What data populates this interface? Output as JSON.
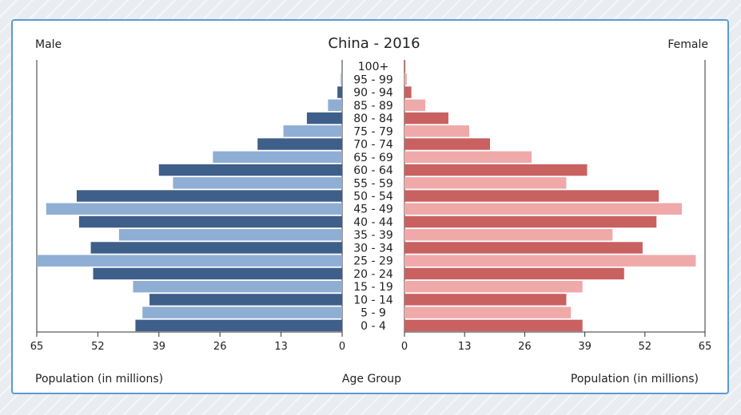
{
  "chart_data": {
    "type": "bar",
    "title": "China - 2016",
    "left_label": "Male",
    "right_label": "Female",
    "xlabel_left": "Population (in millions)",
    "xlabel_center": "Age Group",
    "xlabel_right": "Population (in millions)",
    "ticks_left": [
      "65",
      "52",
      "39",
      "26",
      "13",
      "0"
    ],
    "ticks_right": [
      "0",
      "13",
      "26",
      "39",
      "52",
      "65"
    ],
    "xlim": [
      0,
      65
    ],
    "categories": [
      "100+",
      "95 - 99",
      "90 - 94",
      "85 - 89",
      "80 - 84",
      "75 - 79",
      "70 - 74",
      "65 - 69",
      "60 - 64",
      "55 - 59",
      "50 - 54",
      "45 - 49",
      "40 - 44",
      "35 - 39",
      "30 - 34",
      "25 - 29",
      "20 - 24",
      "15 - 19",
      "10 - 14",
      "5 - 9",
      "0 - 4"
    ],
    "series": [
      {
        "name": "Male",
        "values": [
          0.1,
          0.3,
          1.0,
          3.0,
          7.5,
          12.5,
          18.0,
          27.5,
          39.0,
          36.0,
          56.5,
          63.0,
          56.0,
          47.5,
          53.5,
          65.0,
          53.0,
          44.5,
          41.0,
          42.5,
          44.0
        ]
      },
      {
        "name": "Female",
        "values": [
          0.2,
          0.5,
          1.5,
          4.5,
          9.5,
          14.0,
          18.5,
          27.5,
          39.5,
          35.0,
          55.0,
          60.0,
          54.5,
          45.0,
          51.5,
          63.0,
          47.5,
          38.5,
          35.0,
          36.0,
          38.5
        ]
      }
    ],
    "colors": {
      "male_dark": "#3e5f8a",
      "male_light": "#8faed4",
      "female_dark": "#c96161",
      "female_light": "#f0a9a9"
    },
    "grid": false
  }
}
